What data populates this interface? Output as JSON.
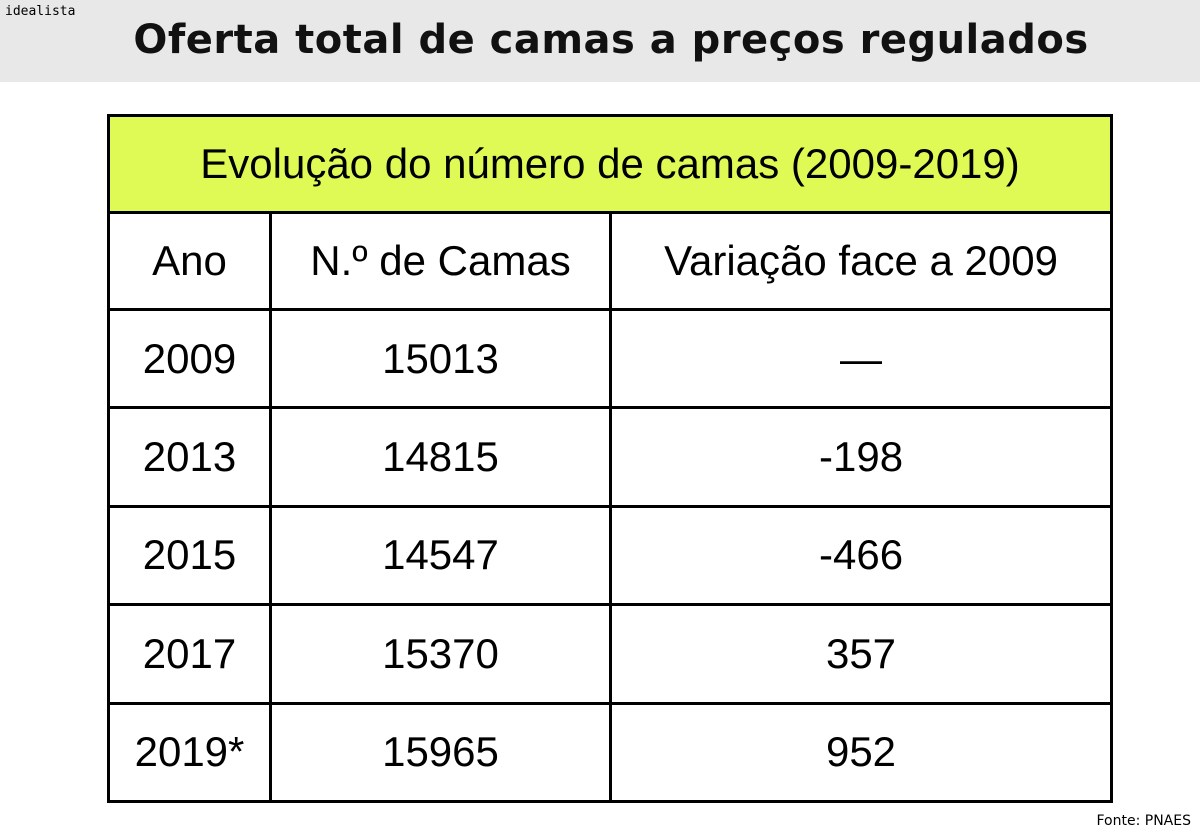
{
  "brand": "idealista",
  "title": "Oferta total de camas a preços regulados",
  "source": "Fonte: PNAES",
  "colors": {
    "header_band": "#e8e8e8",
    "caption_fill": "#dffa55",
    "grid": "#000000"
  },
  "chart_data": {
    "type": "table",
    "title": "Evolução do número de camas (2009-2019)",
    "columns": [
      "Ano",
      "N.º de Camas",
      "Variação face a 2009"
    ],
    "rows": [
      [
        "2009",
        "15013",
        "—"
      ],
      [
        "2013",
        "14815",
        "-198"
      ],
      [
        "2015",
        "14547",
        "-466"
      ],
      [
        "2017",
        "15370",
        "357"
      ],
      [
        "2019*",
        "15965",
        "952"
      ]
    ]
  }
}
